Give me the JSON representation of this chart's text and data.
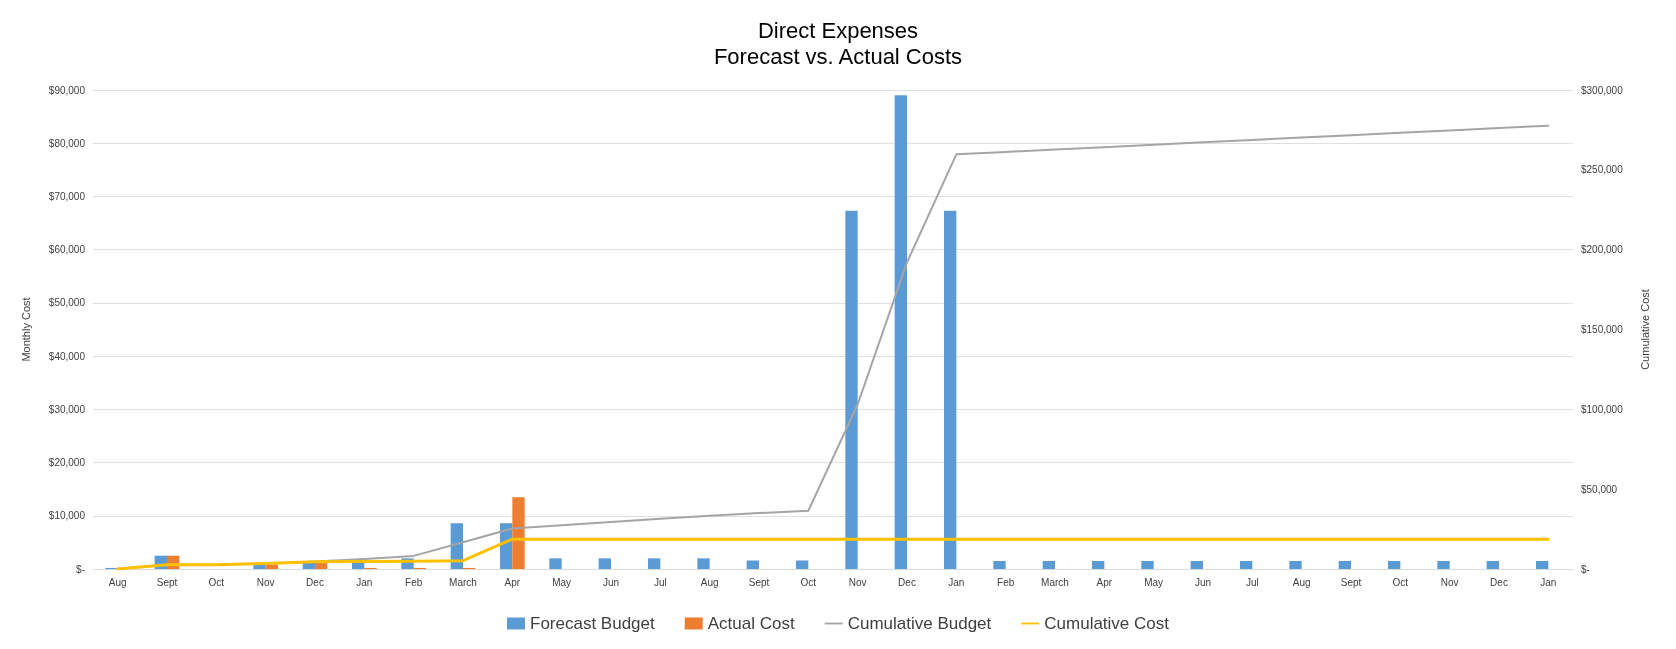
{
  "chart_data": {
    "type": "bar",
    "title": "Direct Expenses",
    "subtitle": "Forecast vs. Actual Costs",
    "ylabel": "Monthly Cost",
    "y2label": "Cumulative Cost",
    "categories": [
      "Aug",
      "Sept",
      "Oct",
      "Nov",
      "Dec",
      "Jan",
      "Feb",
      "March",
      "Apr",
      "May",
      "Jun",
      "Jul",
      "Aug",
      "Sept",
      "Oct",
      "Nov",
      "Dec",
      "Jan",
      "Feb",
      "March",
      "Apr",
      "May",
      "Jun",
      "Jul",
      "Aug",
      "Sept",
      "Oct",
      "Nov",
      "Dec",
      "Jan"
    ],
    "series": [
      {
        "name": "Forecast Budget",
        "color": "#5b9bd5",
        "values": [
          200,
          2500,
          0,
          800,
          1200,
          1500,
          2000,
          8600,
          8600,
          2000,
          2000,
          2000,
          2000,
          1600,
          1600,
          67300,
          89000,
          67300,
          1500,
          1500,
          1500,
          1500,
          1500,
          1500,
          1500,
          1500,
          1500,
          1500,
          1500,
          1500
        ]
      },
      {
        "name": "Actual Cost",
        "color": "#ed7d31",
        "values": [
          0,
          2500,
          0,
          800,
          1200,
          200,
          200,
          200,
          13500,
          null,
          null,
          null,
          null,
          null,
          null,
          null,
          null,
          null,
          null,
          null,
          null,
          null,
          null,
          null,
          null,
          null,
          null,
          null,
          null,
          null
        ]
      },
      {
        "name": "Cumulative Budget",
        "type": "line",
        "axis": "y2",
        "color": "#a5a5a5",
        "values": [
          200,
          2700,
          2700,
          3500,
          4700,
          6200,
          8200,
          16800,
          25400,
          27400,
          29400,
          31400,
          33400,
          35000,
          36500,
          103000,
          192000,
          259700,
          261200,
          262700,
          264200,
          265700,
          267200,
          268700,
          270200,
          271700,
          273200,
          274700,
          276200,
          277600
        ]
      },
      {
        "name": "Cumulative Cost",
        "type": "line",
        "axis": "y2",
        "color": "#ffc000",
        "values": [
          0,
          2700,
          2700,
          3500,
          4500,
          4700,
          4900,
          5200,
          18700,
          18700,
          18700,
          18700,
          18700,
          18700,
          18700,
          18700,
          18700,
          18700,
          18700,
          18700,
          18700,
          18700,
          18700,
          18700,
          18700,
          18700,
          18700,
          18700,
          18700,
          18700
        ]
      }
    ],
    "ylim": [
      0,
      90000
    ],
    "yticks": [
      {
        "value": 0,
        "label": "$-"
      },
      {
        "value": 10000,
        "label": "$10,000"
      },
      {
        "value": 20000,
        "label": "$20,000"
      },
      {
        "value": 30000,
        "label": "$30,000"
      },
      {
        "value": 40000,
        "label": "$40,000"
      },
      {
        "value": 50000,
        "label": "$50,000"
      },
      {
        "value": 60000,
        "label": "$60,000"
      },
      {
        "value": 70000,
        "label": "$70,000"
      },
      {
        "value": 80000,
        "label": "$80,000"
      },
      {
        "value": 90000,
        "label": "$90,000"
      }
    ],
    "y2lim": [
      0,
      300000
    ],
    "y2ticks": [
      {
        "value": 0,
        "label": "$-"
      },
      {
        "value": 50000,
        "label": "$50,000"
      },
      {
        "value": 100000,
        "label": "$100,000"
      },
      {
        "value": 150000,
        "label": "$150,000"
      },
      {
        "value": 200000,
        "label": "$200,000"
      },
      {
        "value": 250000,
        "label": "$250,000"
      },
      {
        "value": 300000,
        "label": "$300,000"
      }
    ],
    "grid": "y",
    "legend": "bottom",
    "marker": "none",
    "line_style": "solid"
  }
}
